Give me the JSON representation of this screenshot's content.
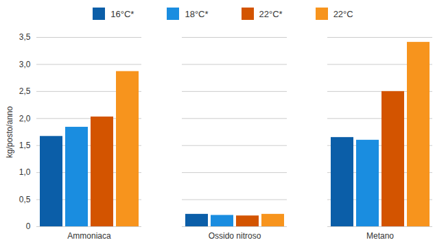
{
  "chart_data": {
    "type": "bar",
    "categories": [
      "Ammoniaca",
      "Ossido nitroso",
      "Metano"
    ],
    "series": [
      {
        "name": "16°C*",
        "color": "#0b5ea8",
        "values": [
          1.67,
          0.23,
          1.65
        ]
      },
      {
        "name": "18°C*",
        "color": "#1a8de0",
        "values": [
          1.84,
          0.21,
          1.6
        ]
      },
      {
        "name": "22°C*",
        "color": "#d35400",
        "values": [
          2.03,
          0.2,
          2.5
        ]
      },
      {
        "name": "22°C",
        "color": "#f7941d",
        "values": [
          2.87,
          0.23,
          3.41
        ]
      }
    ],
    "y_label": "kg/posto/anno",
    "ylim": [
      0,
      3.5
    ],
    "yticks": [
      0,
      {
        "value": 0.5,
        "label": "0,5"
      },
      {
        "value": 1.0,
        "label": "1,0"
      },
      {
        "value": 1.5,
        "label": "1,5"
      },
      {
        "value": 2.0,
        "label": "2,0"
      },
      {
        "value": 2.5,
        "label": "2,5"
      },
      {
        "value": 3.0,
        "label": "3,0"
      },
      {
        "value": 3.5,
        "label": "3,5"
      }
    ],
    "grid": true,
    "legend": "top"
  }
}
